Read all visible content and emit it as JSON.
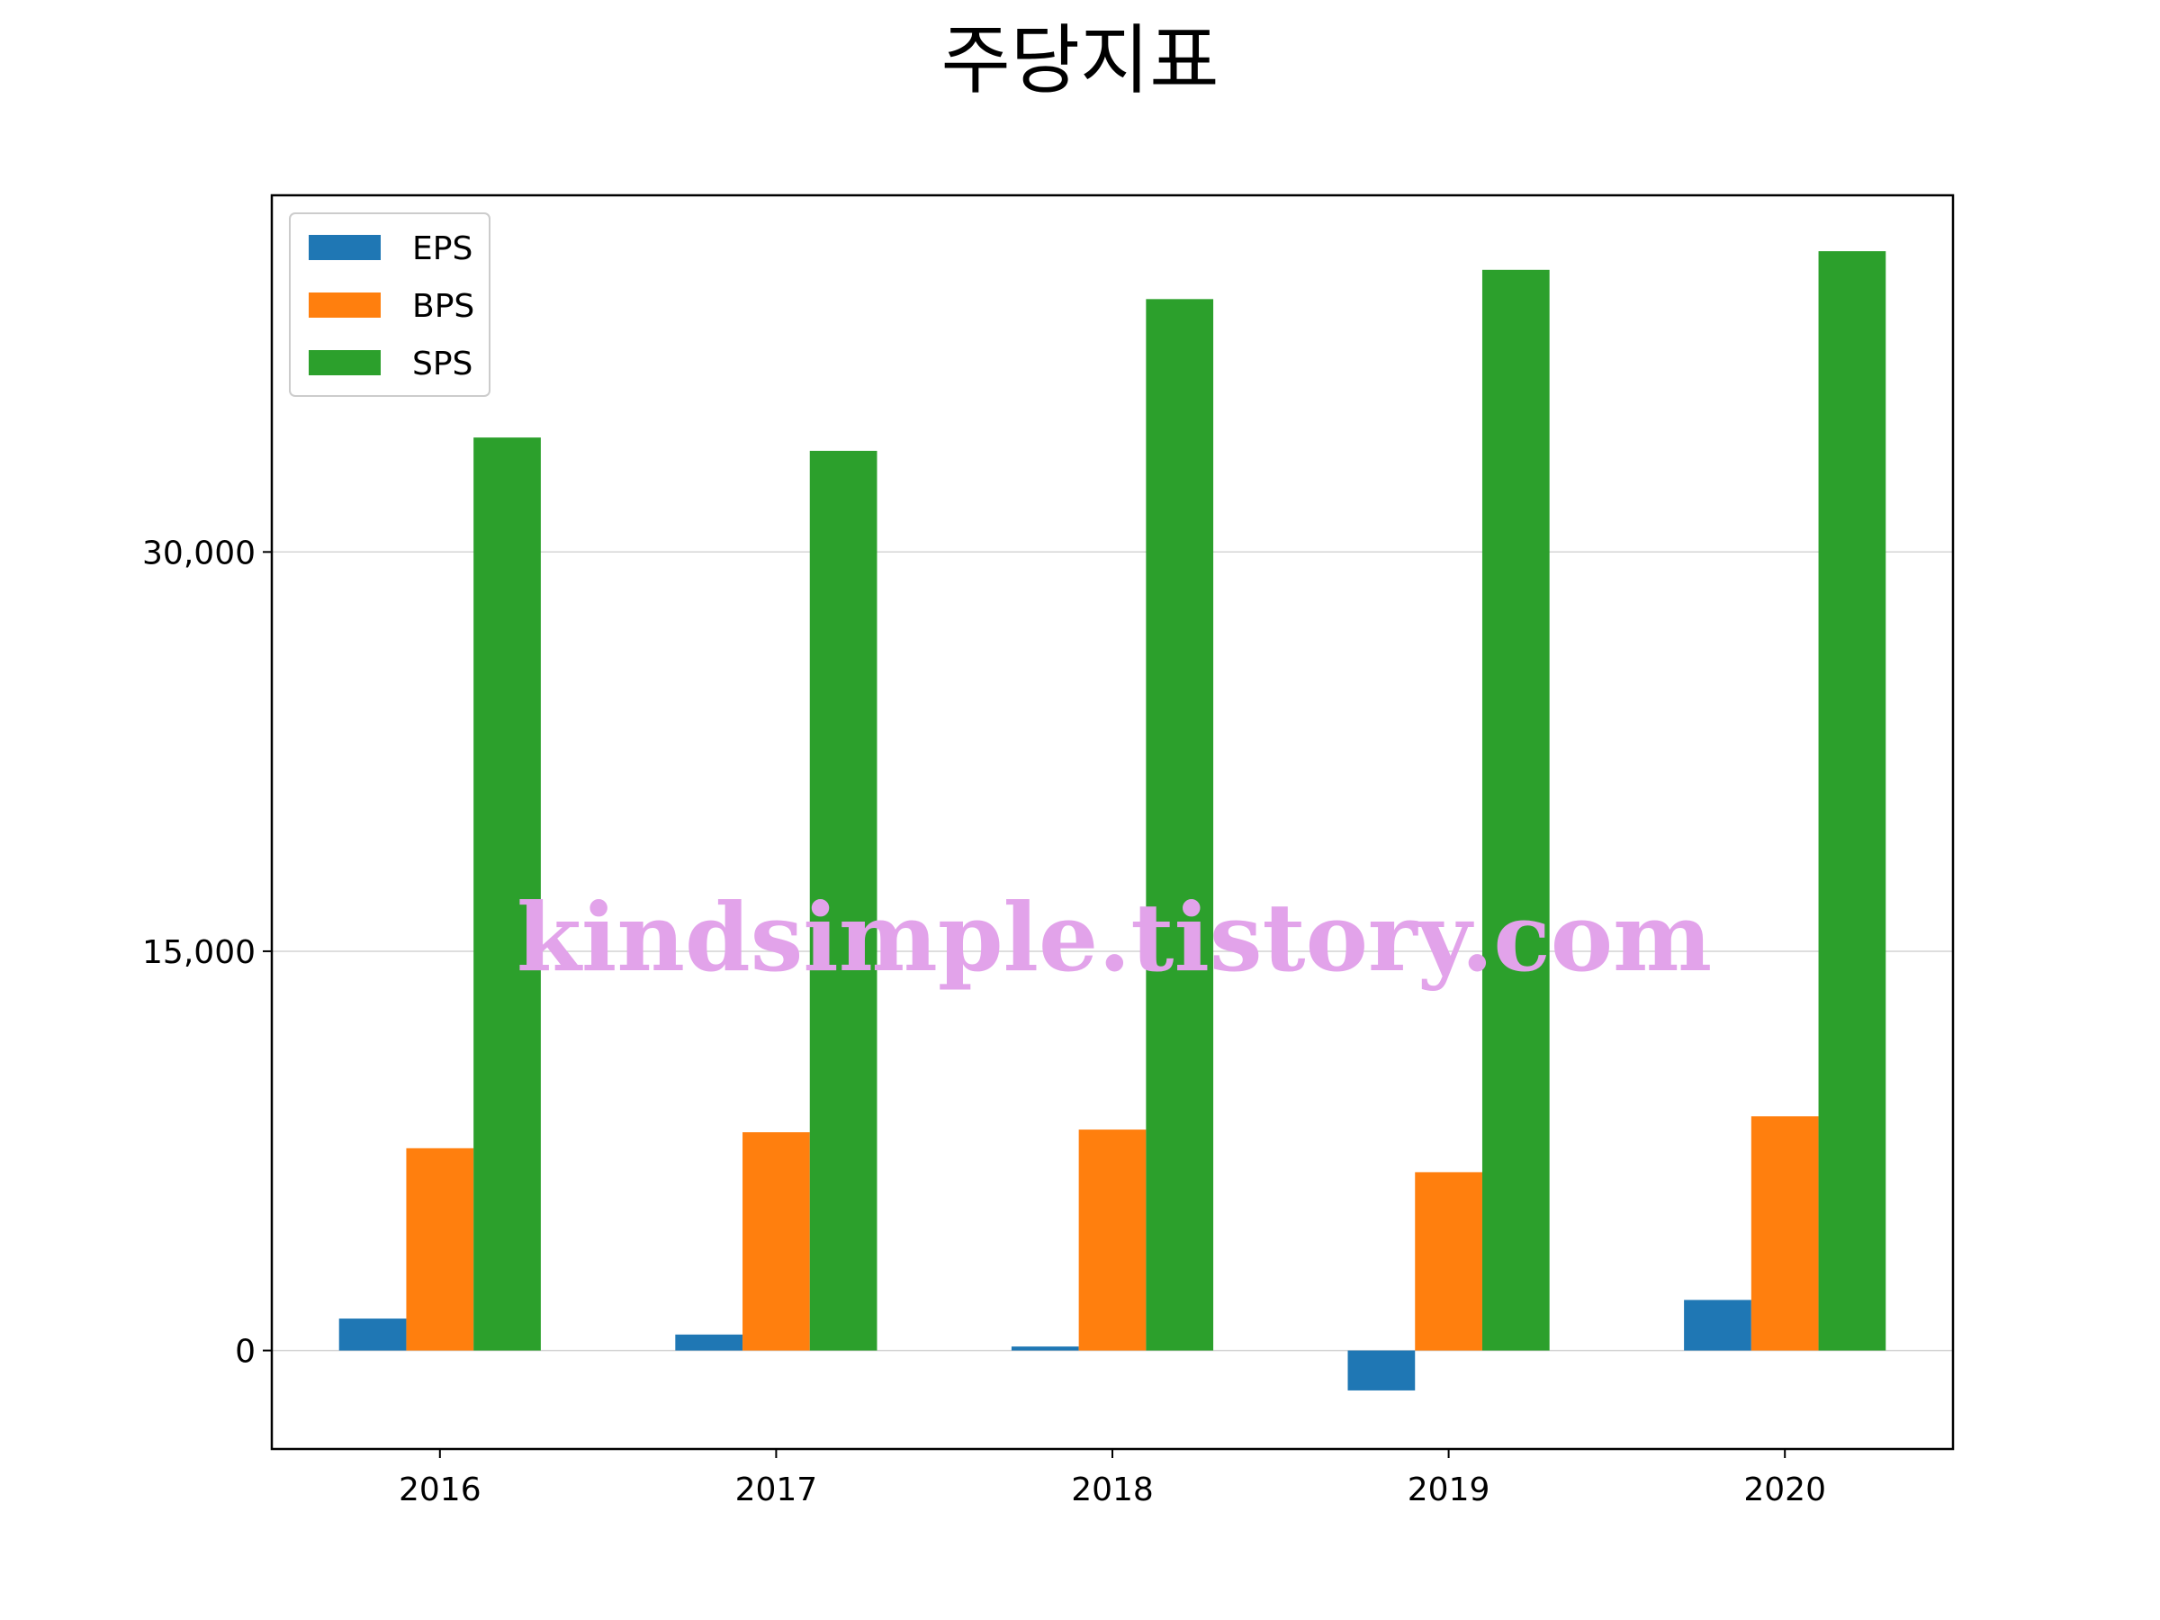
{
  "chart_data": {
    "type": "bar",
    "title": "주당지표",
    "xlabel": "",
    "ylabel": "",
    "categories": [
      "2016",
      "2017",
      "2018",
      "2019",
      "2020"
    ],
    "series": [
      {
        "name": "EPS",
        "color": "#1f77b4",
        "values": [
          1200,
          600,
          150,
          -1500,
          1900
        ]
      },
      {
        "name": "BPS",
        "color": "#ff7f0e",
        "values": [
          7600,
          8200,
          8300,
          6700,
          8800
        ]
      },
      {
        "name": "SPS",
        "color": "#2ca02c",
        "values": [
          34300,
          33800,
          39500,
          40600,
          41300
        ]
      }
    ],
    "ylim": [
      -3700,
      43400
    ],
    "yticks": [
      0,
      15000,
      30000
    ],
    "ytick_labels": [
      "0",
      "15,000",
      "30,000"
    ],
    "grid": "y",
    "legend_position": "upper-left"
  },
  "watermark": "kindsimple.tistory.com"
}
